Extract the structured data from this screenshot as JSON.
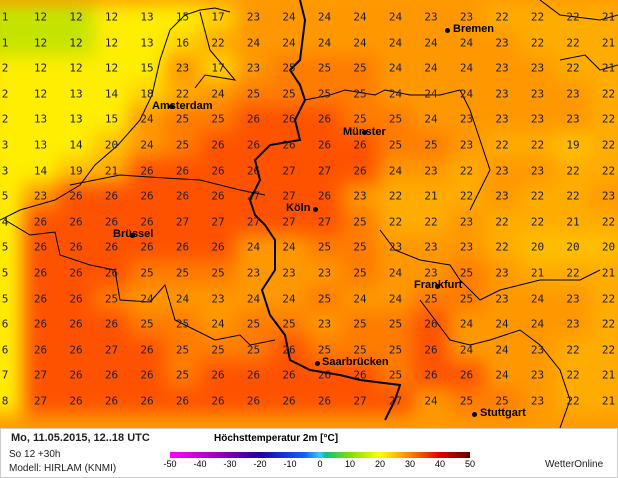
{
  "title": "Höchsttemperatur 2m [°C]",
  "date": "Mo, 11.05.2015, 12..18 UTC",
  "run": "So 12 +30h",
  "model": "Modell: HIRLAM (KNMI)",
  "brand": "WetterOnline",
  "legend_ticks": [
    "-50",
    "-40",
    "-30",
    "-20",
    "-10",
    "0",
    "10",
    "20",
    "30",
    "40",
    "50"
  ],
  "cities": [
    {
      "name": "Bremen"
    },
    {
      "name": "Amsterdam"
    },
    {
      "name": "Münster"
    },
    {
      "name": "Köln"
    },
    {
      "name": "Brüssel"
    },
    {
      "name": "Frankfurt"
    },
    {
      "name": "Saarbrücken"
    },
    {
      "name": "Stuttgart"
    }
  ],
  "grid": [
    [
      1,
      12,
      12,
      12,
      13,
      15,
      17,
      23,
      24,
      24,
      24,
      24,
      23,
      23,
      22,
      22,
      22,
      21
    ],
    [
      1,
      12,
      12,
      12,
      13,
      16,
      22,
      24,
      24,
      24,
      24,
      24,
      24,
      24,
      23,
      22,
      22,
      21
    ],
    [
      2,
      12,
      12,
      12,
      15,
      23,
      17,
      23,
      25,
      25,
      25,
      24,
      24,
      24,
      23,
      23,
      22,
      21
    ],
    [
      2,
      12,
      13,
      14,
      18,
      22,
      24,
      25,
      25,
      25,
      25,
      24,
      24,
      24,
      23,
      23,
      23,
      22
    ],
    [
      2,
      13,
      13,
      15,
      24,
      25,
      25,
      26,
      26,
      26,
      25,
      25,
      24,
      23,
      23,
      23,
      23,
      22
    ],
    [
      3,
      13,
      14,
      20,
      24,
      25,
      26,
      26,
      26,
      26,
      26,
      25,
      25,
      23,
      22,
      22,
      19,
      22
    ],
    [
      3,
      14,
      19,
      21,
      26,
      26,
      26,
      26,
      27,
      27,
      26,
      24,
      23,
      22,
      23,
      23,
      22,
      22
    ],
    [
      5,
      23,
      26,
      26,
      26,
      26,
      26,
      27,
      27,
      26,
      23,
      22,
      21,
      22,
      23,
      22,
      22,
      23
    ],
    [
      4,
      26,
      26,
      26,
      26,
      27,
      27,
      27,
      27,
      27,
      25,
      22,
      22,
      23,
      22,
      22,
      21,
      22
    ],
    [
      5,
      26,
      26,
      26,
      26,
      26,
      26,
      24,
      24,
      25,
      25,
      23,
      23,
      23,
      22,
      20,
      20,
      20
    ],
    [
      5,
      26,
      26,
      26,
      25,
      25,
      25,
      23,
      23,
      23,
      25,
      24,
      23,
      25,
      23,
      21,
      22,
      21
    ],
    [
      5,
      26,
      26,
      25,
      24,
      24,
      23,
      24,
      24,
      25,
      24,
      24,
      25,
      25,
      23,
      24,
      23,
      22
    ],
    [
      6,
      26,
      26,
      26,
      25,
      25,
      24,
      25,
      25,
      23,
      25,
      25,
      26,
      24,
      24,
      24,
      23,
      22
    ],
    [
      6,
      26,
      26,
      27,
      26,
      25,
      25,
      25,
      26,
      25,
      25,
      25,
      26,
      24,
      24,
      23,
      22,
      22
    ],
    [
      7,
      27,
      26,
      26,
      26,
      25,
      26,
      26,
      26,
      26,
      26,
      25,
      26,
      26,
      24,
      23,
      22,
      21
    ],
    [
      8,
      27,
      26,
      26,
      26,
      26,
      26,
      26,
      26,
      26,
      27,
      27,
      24,
      25,
      25,
      23,
      22,
      21
    ]
  ]
}
